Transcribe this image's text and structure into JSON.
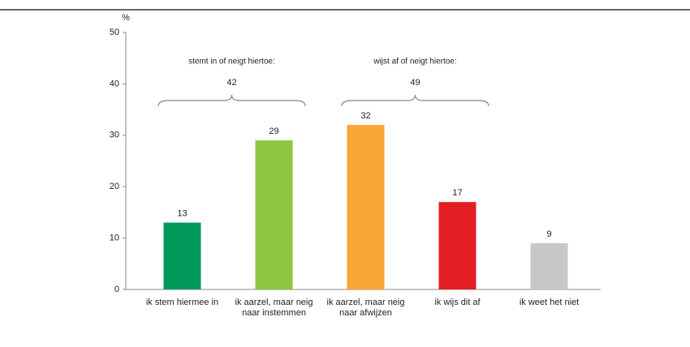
{
  "chart_data": {
    "type": "bar",
    "y_unit": "%",
    "categories": [
      "ik stem hiermee in",
      "ik aarzel, maar neig naar instemmen",
      "ik aarzel, maar neig naar afwijzen",
      "ik wijs dit af",
      "ik weet het niet"
    ],
    "values": [
      13,
      29,
      32,
      17,
      9
    ],
    "colors": [
      "#00995a",
      "#8dc63f",
      "#f9a533",
      "#e31e24",
      "#c8c8c8"
    ],
    "ylim": [
      0,
      50
    ],
    "yticks": [
      0,
      10,
      20,
      30,
      40,
      50
    ],
    "groups": [
      {
        "label": "stemt in of neigt hiertoe:",
        "total": 42
      },
      {
        "label": "wijst af of neigt hiertoe:",
        "total": 49
      }
    ]
  }
}
